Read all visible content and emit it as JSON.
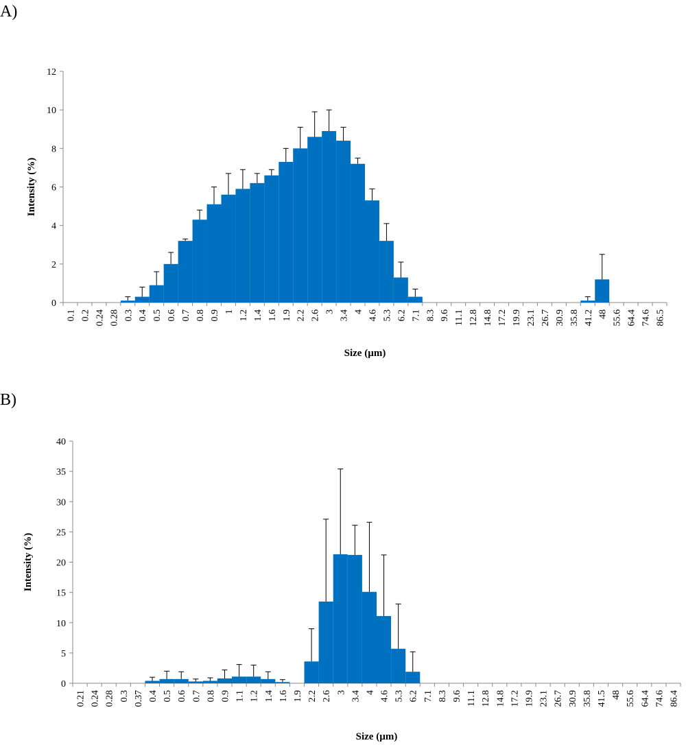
{
  "panels": {
    "a": {
      "label": "A)"
    },
    "b": {
      "label": "B)"
    }
  },
  "colors": {
    "bar": "#0070C0",
    "axis": "#888888",
    "error": "#000000"
  },
  "chart_data": [
    {
      "type": "bar",
      "panel": "A)",
      "xlabel": "Size (µm)",
      "ylabel": "Intensity (%)",
      "ylim": [
        0,
        12
      ],
      "yticks": [
        0,
        2,
        4,
        6,
        8,
        10,
        12
      ],
      "grid": false,
      "categories": [
        "0.1",
        "0.2",
        "0.24",
        "0.28",
        "0.3",
        "0.4",
        "0.5",
        "0.6",
        "0.7",
        "0.8",
        "0.9",
        "1",
        "1.2",
        "1.4",
        "1.6",
        "1.9",
        "2.2",
        "2.6",
        "3",
        "3.4",
        "4",
        "4.6",
        "5.3",
        "6.2",
        "7.1",
        "8.3",
        "9.6",
        "11.1",
        "12.8",
        "14.8",
        "17.2",
        "19.9",
        "23.1",
        "26.7",
        "30.9",
        "35.8",
        "41.2",
        "48",
        "55.6",
        "64.4",
        "74.6",
        "86.5"
      ],
      "values": [
        0,
        0,
        0,
        0,
        0.1,
        0.3,
        0.9,
        2.0,
        3.2,
        4.3,
        5.1,
        5.6,
        5.9,
        6.2,
        6.6,
        7.3,
        8.0,
        8.6,
        8.9,
        8.4,
        7.2,
        5.3,
        3.2,
        1.3,
        0.3,
        0,
        0,
        0,
        0,
        0,
        0,
        0,
        0,
        0,
        0,
        0,
        0.1,
        1.2,
        0,
        0,
        0,
        0
      ],
      "errors": [
        0,
        0,
        0,
        0,
        0.2,
        0.5,
        0.7,
        0.6,
        0.1,
        0.5,
        0.9,
        1.1,
        1.0,
        0.5,
        0.3,
        0.7,
        1.1,
        1.3,
        1.1,
        0.7,
        0.3,
        0.6,
        0.9,
        0.8,
        0.4,
        0,
        0,
        0,
        0,
        0,
        0,
        0,
        0,
        0,
        0,
        0,
        0.2,
        1.3,
        0,
        0,
        0,
        0
      ]
    },
    {
      "type": "bar",
      "panel": "B)",
      "xlabel": "Size (µm)",
      "ylabel": "Intensity (%)",
      "ylim": [
        0,
        40
      ],
      "yticks": [
        0,
        5,
        10,
        15,
        20,
        25,
        30,
        35,
        40
      ],
      "grid": false,
      "categories": [
        "0.21",
        "0.24",
        "0.28",
        "0.3",
        "0.37",
        "0.4",
        "0.5",
        "0.6",
        "0.7",
        "0.8",
        "0.9",
        "1.1",
        "1.2",
        "1.4",
        "1.6",
        "1.9",
        "2.2",
        "2.6",
        "3",
        "3.4",
        "4",
        "4.6",
        "5.3",
        "6.2",
        "7.1",
        "8.3",
        "9.6",
        "11.1",
        "12.8",
        "14.8",
        "17.2",
        "19.9",
        "23.1",
        "26.7",
        "30.9",
        "35.8",
        "41.5",
        "48",
        "55.6",
        "64.4",
        "74.6",
        "86.4"
      ],
      "values": [
        0,
        0,
        0,
        0,
        0,
        0.4,
        0.7,
        0.7,
        0.3,
        0.4,
        0.8,
        1.1,
        1.1,
        0.7,
        0.2,
        0,
        3.6,
        13.5,
        21.3,
        21.2,
        15.1,
        11.1,
        5.7,
        1.9,
        0,
        0,
        0,
        0,
        0,
        0,
        0,
        0,
        0,
        0,
        0,
        0,
        0,
        0,
        0,
        0,
        0,
        0
      ],
      "errors": [
        0,
        0,
        0,
        0,
        0,
        0.6,
        1.3,
        1.2,
        0.4,
        0.5,
        1.4,
        2.0,
        1.9,
        1.2,
        0.4,
        0,
        5.4,
        13.6,
        14.1,
        4.9,
        11.5,
        10.1,
        7.4,
        3.3,
        0,
        0,
        0,
        0,
        0,
        0,
        0,
        0,
        0,
        0,
        0,
        0,
        0,
        0,
        0,
        0,
        0,
        0
      ]
    }
  ]
}
